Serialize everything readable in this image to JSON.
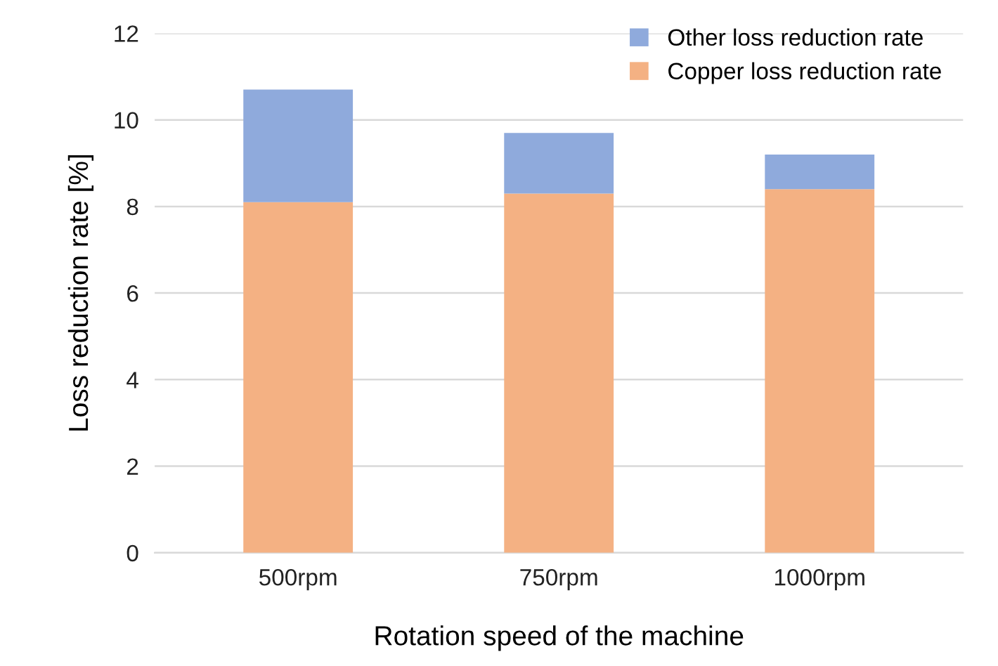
{
  "chart_data": {
    "type": "bar",
    "stacked": true,
    "xlabel": "Rotation speed of the machine",
    "ylabel": "Loss reduction rate [%]",
    "categories": [
      "500rpm",
      "750rpm",
      "1000rpm"
    ],
    "series": [
      {
        "name": "Copper loss reduction rate",
        "color": "#f4b183",
        "values": [
          8.1,
          8.3,
          8.4
        ]
      },
      {
        "name": "Other loss reduction rate",
        "color": "#8faadc",
        "values": [
          2.6,
          1.4,
          0.8
        ]
      }
    ],
    "ylim": [
      0,
      12
    ],
    "yticks": [
      0,
      2,
      4,
      6,
      8,
      10,
      12
    ],
    "grid": "y",
    "legend": "top right"
  }
}
